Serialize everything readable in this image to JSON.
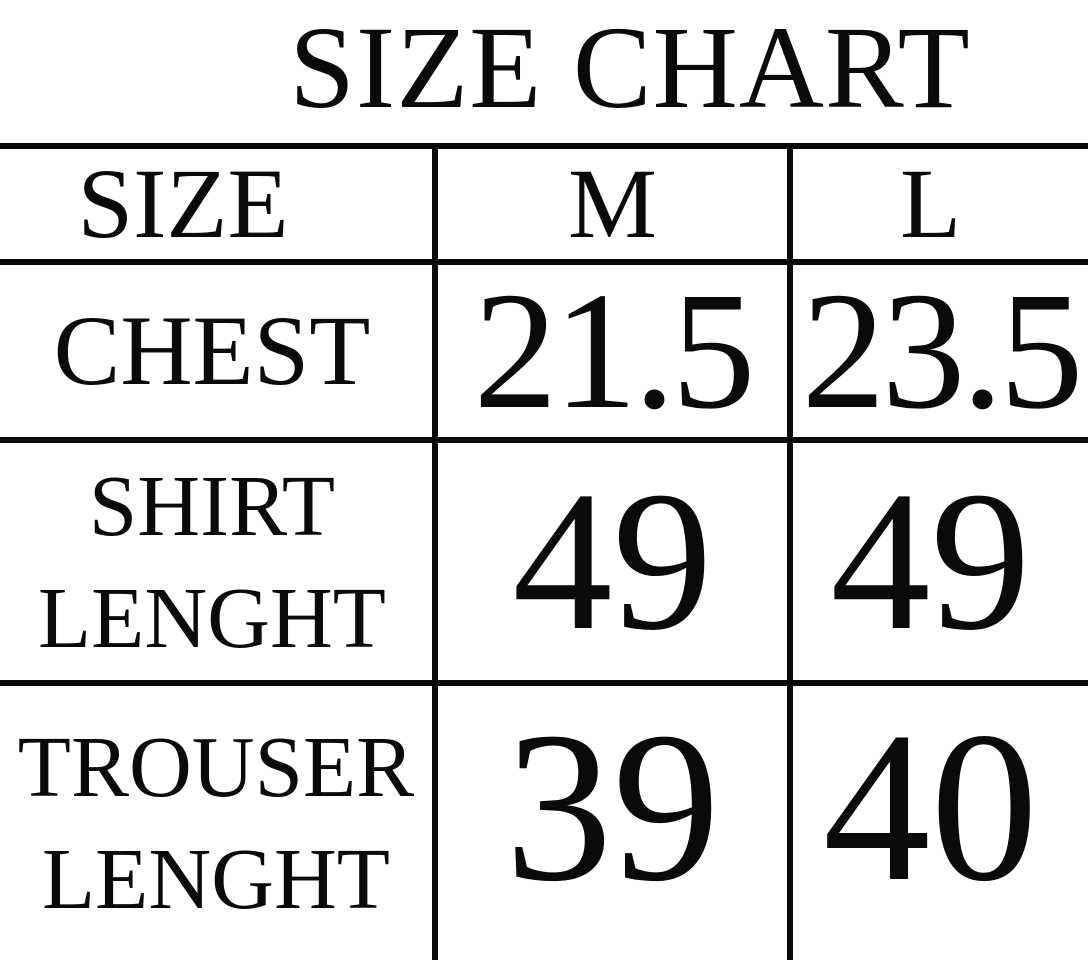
{
  "title": "SIZE CHART",
  "table": {
    "header": [
      "SIZE",
      "M",
      "L"
    ],
    "rows": [
      {
        "label": [
          "CHEST"
        ],
        "values": [
          "21.5",
          "23.5"
        ]
      },
      {
        "label": [
          "SHIRT",
          "LENGHT"
        ],
        "values": [
          "49",
          "49"
        ]
      },
      {
        "label": [
          "TROUSER",
          "LENGHT"
        ],
        "values": [
          "39",
          "40"
        ]
      }
    ]
  }
}
